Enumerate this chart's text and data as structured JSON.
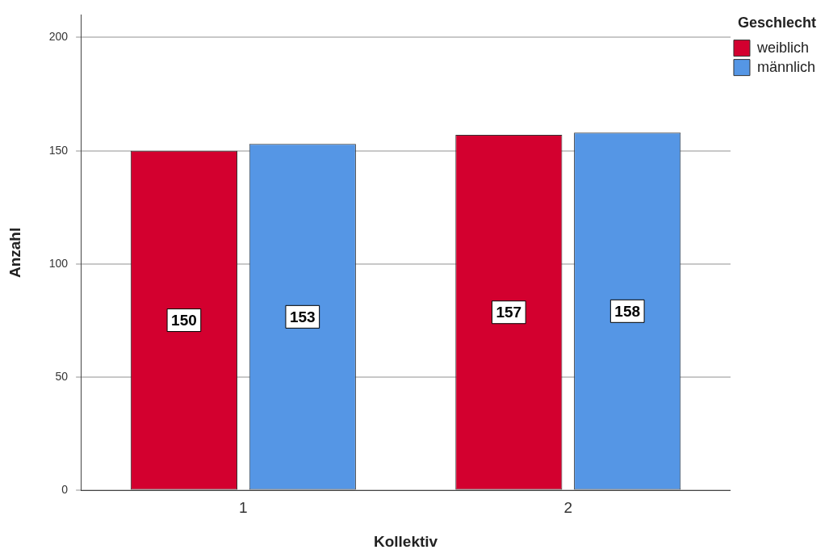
{
  "chart_data": {
    "type": "bar",
    "xlabel": "Kollektiv",
    "ylabel": "Anzahl",
    "legend_title": "Geschlecht",
    "categories": [
      "1",
      "2"
    ],
    "series": [
      {
        "name": "weiblich",
        "color": "#d3002f",
        "values": [
          150,
          157
        ]
      },
      {
        "name": "männlich",
        "color": "#5596e5",
        "values": [
          153,
          158
        ]
      }
    ],
    "ylim": [
      0,
      210
    ],
    "yticks": [
      0,
      50,
      100,
      150,
      200
    ],
    "grid": "y",
    "legend": "top right",
    "data_labels": true
  }
}
